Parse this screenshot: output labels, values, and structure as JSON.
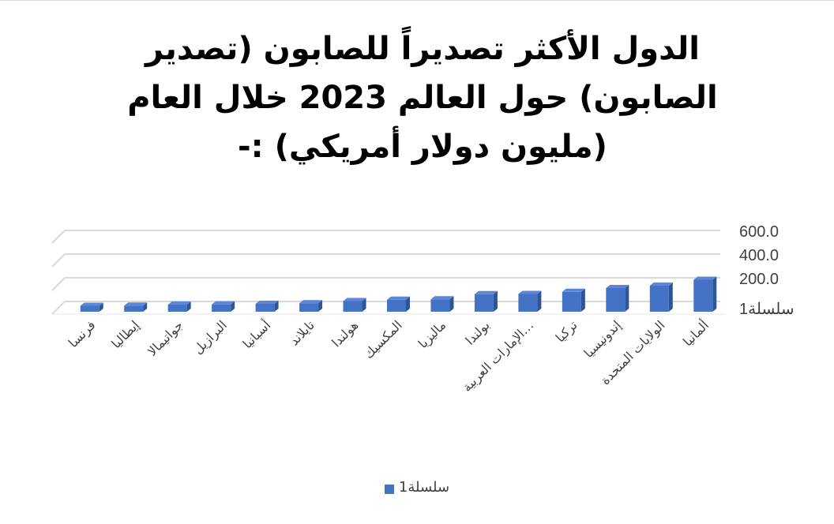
{
  "chart_data": {
    "type": "bar",
    "title": "الدول الأكثر تصديراً للصابون (تصدير الصابون) حول العالم 2023 خلال العام (مليون دولار أمريكي) :-",
    "categories": [
      "فرنسا",
      "إيطاليا",
      "جواتيمالا",
      "البرازيل",
      "أسبانيا",
      "تايلاند",
      "هولندا",
      "المكسيك",
      "ماليزيا",
      "بولندا",
      "الإمارات العربية…",
      "تركيا",
      "إندونيسيا",
      "الولايات المتحدة",
      "ألمانيا"
    ],
    "series": [
      {
        "name": "سلسلة1",
        "values": [
          50,
          52,
          60,
          62,
          67,
          72,
          90,
          102,
          105,
          148,
          150,
          168,
          200,
          220,
          270
        ],
        "color": "#4472c4",
        "side_color": "#2f5597",
        "top_color": "#5b87d6"
      }
    ],
    "yticks": [
      "600.0",
      "400.0",
      "200.0"
    ],
    "ytick_values": [
      600,
      400,
      200
    ],
    "ylim": [
      0,
      600
    ],
    "depth_label": "سلسلة1",
    "grid": true,
    "legend_position": "bottom",
    "chart_style": "3d-column"
  },
  "legend": {
    "label": "سلسلة1"
  }
}
